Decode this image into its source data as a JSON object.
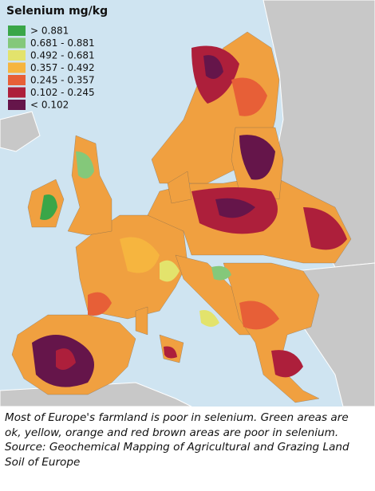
{
  "legend": {
    "title": "Selenium mg/kg",
    "items": [
      {
        "label": "> 0.881",
        "color": "#3aa648"
      },
      {
        "label": "0.681 - 0.881",
        "color": "#84c87a"
      },
      {
        "label": "0.492 - 0.681",
        "color": "#e3e36c"
      },
      {
        "label": "0.357 - 0.492",
        "color": "#f6b53f"
      },
      {
        "label": "0.245 - 0.357",
        "color": "#e75f37"
      },
      {
        "label": "0.102 - 0.245",
        "color": "#ad1f3b"
      },
      {
        "label": "< 0.102",
        "color": "#65154a"
      }
    ]
  },
  "caption": {
    "lines": [
      "Most of Europe's farmland is poor in selenium. Green areas are",
      "ok, yellow, orange and red brown areas are poor in selenium.",
      "Source: Geochemical Mapping of Agricultural and Grazing Land",
      "Soil of Europe"
    ]
  }
}
